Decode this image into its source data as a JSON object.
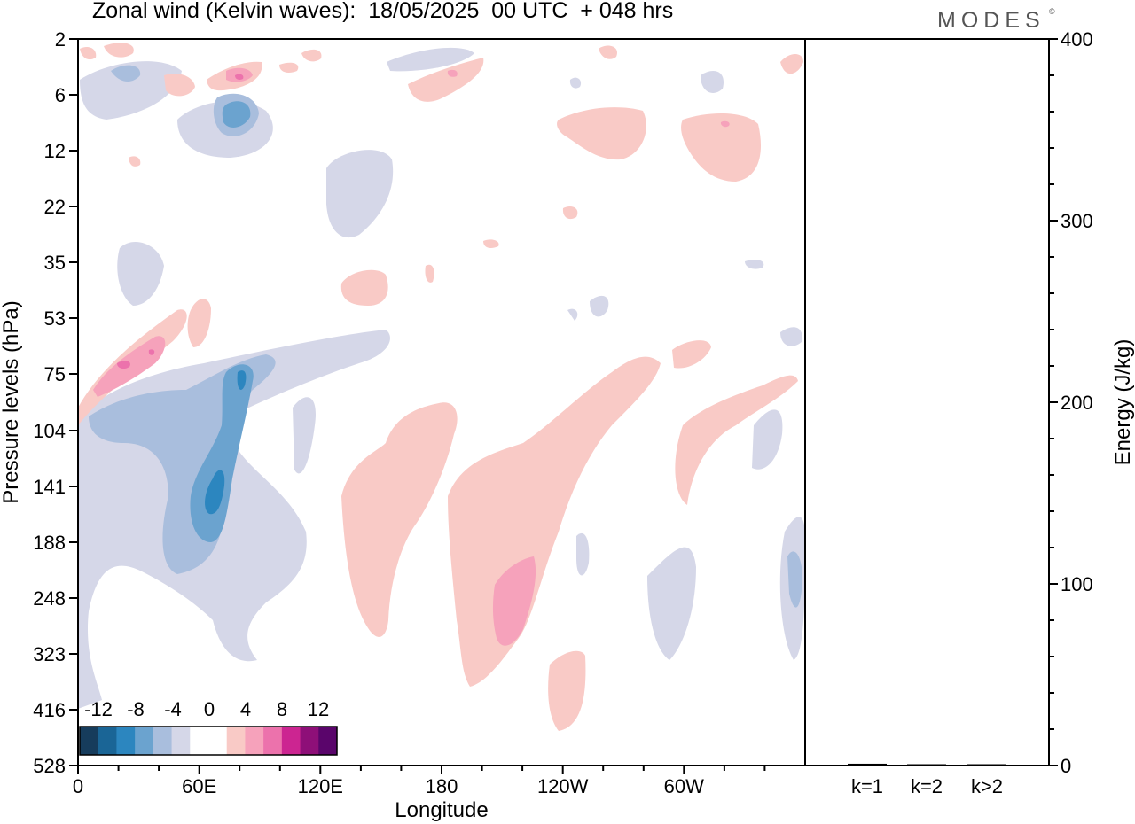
{
  "header": {
    "title": "Zonal wind (Kelvin waves):  18/05/2025  00 UTC  + 048 hrs",
    "brand": "MODES",
    "brand_mark": "©"
  },
  "chart_data": [
    {
      "type": "heatmap",
      "title": "Zonal wind (Kelvin waves):  18/05/2025  00 UTC  + 048 hrs",
      "xlabel": "Longitude",
      "ylabel": "Pressure levels (hPa)",
      "x_ticks": [
        "0",
        "60E",
        "120E",
        "180",
        "120W",
        "60W"
      ],
      "x_tick_values": [
        0,
        60,
        120,
        180,
        240,
        300
      ],
      "xlim": [
        0,
        360
      ],
      "y_ticks": [
        "2",
        "6",
        "12",
        "22",
        "35",
        "53",
        "75",
        "104",
        "141",
        "188",
        "248",
        "323",
        "416",
        "528"
      ],
      "y_scale": "pressure levels (reversed, top = 2 hPa)",
      "colorbar": {
        "labels": [
          "-12",
          "-8",
          "-4",
          "0",
          "4",
          "8",
          "12"
        ],
        "colors": [
          "#163c5c",
          "#1a6596",
          "#2c86bf",
          "#6ba3cf",
          "#a9bedd",
          "#d5d7e8",
          "#ffffff",
          "#ffffff",
          "#f9cac6",
          "#f6a2bb",
          "#ec72ac",
          "#cc2591",
          "#8e0f78",
          "#5a056b"
        ]
      },
      "features": [
        {
          "sign": "negative",
          "level": 1,
          "lon": [
            0,
            110
          ],
          "p": [
            100,
            400
          ],
          "desc": "broad weak easterly band"
        },
        {
          "sign": "negative",
          "level": 3,
          "lon": [
            40,
            100
          ],
          "p": [
            75,
            250
          ],
          "desc": "moderate easterly core"
        },
        {
          "sign": "negative",
          "level": 5,
          "lon": [
            60,
            70
          ],
          "p": [
            125,
            165
          ],
          "desc": "strong easterly centre"
        },
        {
          "sign": "positive",
          "level": 3,
          "lon": [
            5,
            45
          ],
          "p": [
            60,
            90
          ],
          "desc": "westerly core aloft"
        },
        {
          "sign": "positive",
          "level": 1,
          "lon": [
            130,
            300
          ],
          "p": [
            80,
            500
          ],
          "desc": "broad westerly tilted bands"
        },
        {
          "sign": "positive",
          "level": 2,
          "lon": [
            200,
            225
          ],
          "p": [
            210,
            320
          ],
          "desc": "moderate westerly core"
        }
      ]
    },
    {
      "type": "bar",
      "ylabel": "Energy (J/kg)",
      "categories": [
        "k=1",
        "k=2",
        "k>2"
      ],
      "values": [
        1,
        0,
        0.5
      ],
      "ylim": [
        0,
        400
      ],
      "y_ticks": [
        "0",
        "100",
        "200",
        "300",
        "400"
      ]
    }
  ]
}
